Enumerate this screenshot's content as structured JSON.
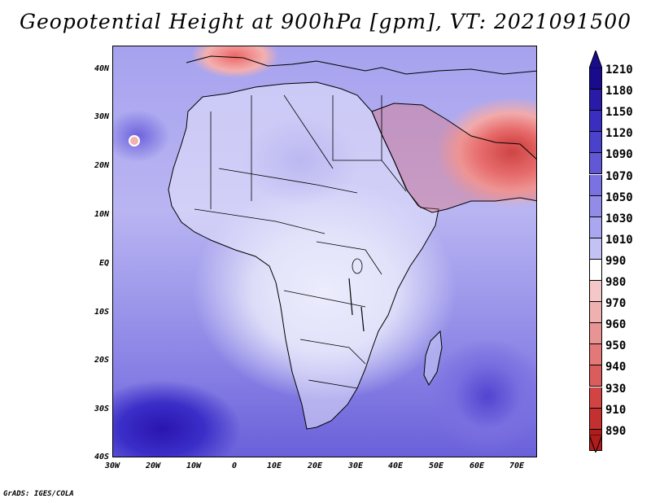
{
  "title": "Geopotential Height at 900hPa [gpm], VT: 2021091500",
  "credit": "GrADS: IGES/COLA",
  "map": {
    "lat_labels": [
      "40N",
      "30N",
      "20N",
      "10N",
      "EQ",
      "10S",
      "20S",
      "30S",
      "40S"
    ],
    "lon_labels": [
      "30W",
      "20W",
      "10W",
      "0",
      "10E",
      "20E",
      "30E",
      "40E",
      "50E",
      "60E",
      "70E"
    ],
    "region": "Africa and surrounding oceans"
  },
  "colorbar": {
    "levels": [
      "1210",
      "1180",
      "1150",
      "1120",
      "1090",
      "1070",
      "1050",
      "1030",
      "1010",
      "990",
      "980",
      "970",
      "960",
      "950",
      "940",
      "930",
      "910",
      "890"
    ],
    "colors": [
      "#1a0a8c",
      "#2a1aa8",
      "#3a2ec0",
      "#4b42cc",
      "#6258d6",
      "#7a72e0",
      "#928ce8",
      "#aaa6ef",
      "#c4c2f5",
      "#ffffff",
      "#f4c8c8",
      "#efb0b0",
      "#e99494",
      "#e27878",
      "#db5c5c",
      "#d24444",
      "#c43030",
      "#b01c1c"
    ],
    "top_arrow_color": "#1a0a8c",
    "bottom_arrow_color": "#b01c1c"
  }
}
